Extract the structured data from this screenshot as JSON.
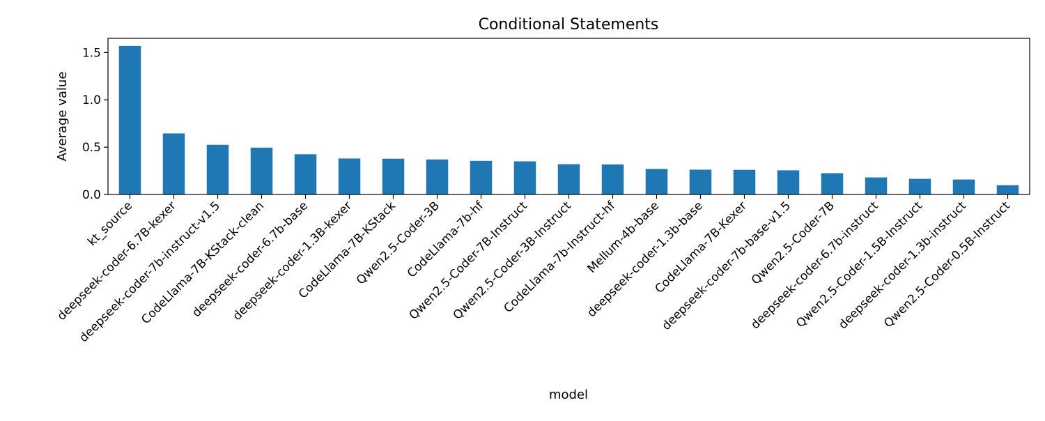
{
  "chart_data": {
    "type": "bar",
    "title": "Conditional Statements",
    "xlabel": "model",
    "ylabel": "Average value",
    "ylim": [
      0,
      1.65
    ],
    "yticks": [
      0.0,
      0.5,
      1.0,
      1.5
    ],
    "ytick_labels": [
      "0.0",
      "0.5",
      "1.0",
      "1.5"
    ],
    "grid": false,
    "legend": "none",
    "bar_color": "#1f77b4",
    "categories": [
      "kt_source",
      "deepseek-coder-6.7B-kexer",
      "deepseek-coder-7b-instruct-v1.5",
      "CodeLlama-7B-KStack-clean",
      "deepseek-coder-6.7b-base",
      "deepseek-coder-1.3B-kexer",
      "CodeLlama-7B-KStack",
      "Qwen2.5-Coder-3B",
      "CodeLlama-7b-hf",
      "Qwen2.5-Coder-7B-Instruct",
      "Qwen2.5-Coder-3B-Instruct",
      "CodeLlama-7b-Instruct-hf",
      "Mellum-4b-base",
      "deepseek-coder-1.3b-base",
      "CodeLlama-7B-Kexer",
      "deepseek-coder-7b-base-v1.5",
      "Qwen2.5-Coder-7B",
      "deepseek-coder-6.7b-instruct",
      "Qwen2.5-Coder-1.5B-Instruct",
      "deepseek-coder-1.3b-instruct",
      "Qwen2.5-Coder-0.5B-Instruct"
    ],
    "values": [
      1.57,
      0.645,
      0.525,
      0.495,
      0.425,
      0.38,
      0.378,
      0.37,
      0.355,
      0.35,
      0.32,
      0.318,
      0.27,
      0.262,
      0.26,
      0.255,
      0.225,
      0.18,
      0.165,
      0.158,
      0.098
    ]
  }
}
